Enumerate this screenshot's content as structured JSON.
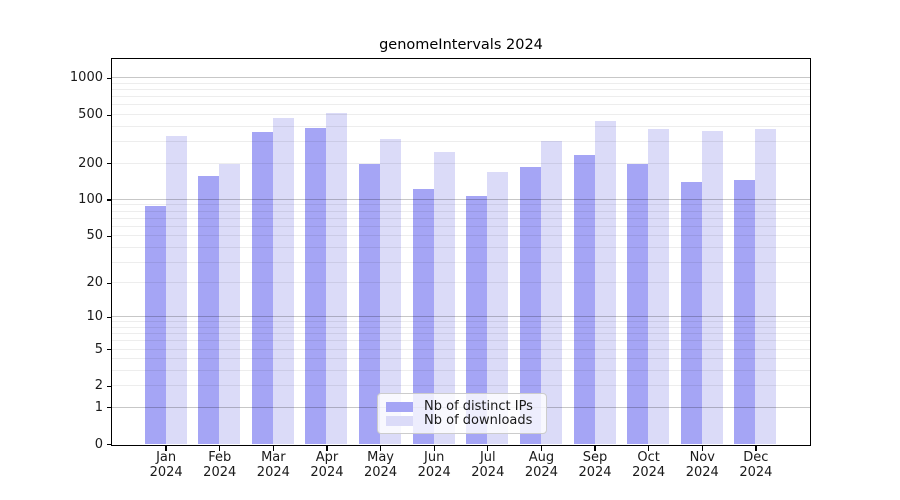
{
  "chart_data": {
    "type": "bar",
    "title": "genomeIntervals 2024",
    "categories": [
      {
        "month": "Jan",
        "year": "2024"
      },
      {
        "month": "Feb",
        "year": "2024"
      },
      {
        "month": "Mar",
        "year": "2024"
      },
      {
        "month": "Apr",
        "year": "2024"
      },
      {
        "month": "May",
        "year": "2024"
      },
      {
        "month": "Jun",
        "year": "2024"
      },
      {
        "month": "Jul",
        "year": "2024"
      },
      {
        "month": "Aug",
        "year": "2024"
      },
      {
        "month": "Sep",
        "year": "2024"
      },
      {
        "month": "Oct",
        "year": "2024"
      },
      {
        "month": "Nov",
        "year": "2024"
      },
      {
        "month": "Dec",
        "year": "2024"
      }
    ],
    "series": [
      {
        "name": "Nb of distinct IPs",
        "color": "#a5a5f5",
        "values": [
          89,
          155,
          357,
          388,
          197,
          121,
          107,
          185,
          232,
          196,
          139,
          145
        ]
      },
      {
        "name": "Nb of downloads",
        "color": "#dbdbf8",
        "values": [
          335,
          196,
          465,
          515,
          315,
          247,
          168,
          303,
          445,
          382,
          368,
          380
        ]
      }
    ],
    "xlabel": "",
    "ylabel": "",
    "yscale": "log1p",
    "ylim": [
      0,
      1430
    ],
    "y_ticks": [
      1000,
      500,
      200,
      100,
      50,
      20,
      10,
      5,
      2,
      1,
      0
    ],
    "grid": {
      "major": [
        1,
        10,
        100,
        1000
      ],
      "minor": [
        2,
        3,
        4,
        5,
        6,
        7,
        8,
        9,
        20,
        30,
        40,
        50,
        60,
        70,
        80,
        90,
        200,
        300,
        400,
        500,
        600,
        700,
        800,
        900
      ]
    },
    "legend_position": "lower center"
  },
  "colors": {
    "background": "#ffffff",
    "spine": "#000000",
    "text": "#1a1a1a",
    "grid_major": "rgba(0,0,0,0.22)",
    "grid_minor": "rgba(0,0,0,0.07)",
    "legend_bg": "rgba(255,255,255,0.8)",
    "legend_border": "#cccccc"
  }
}
